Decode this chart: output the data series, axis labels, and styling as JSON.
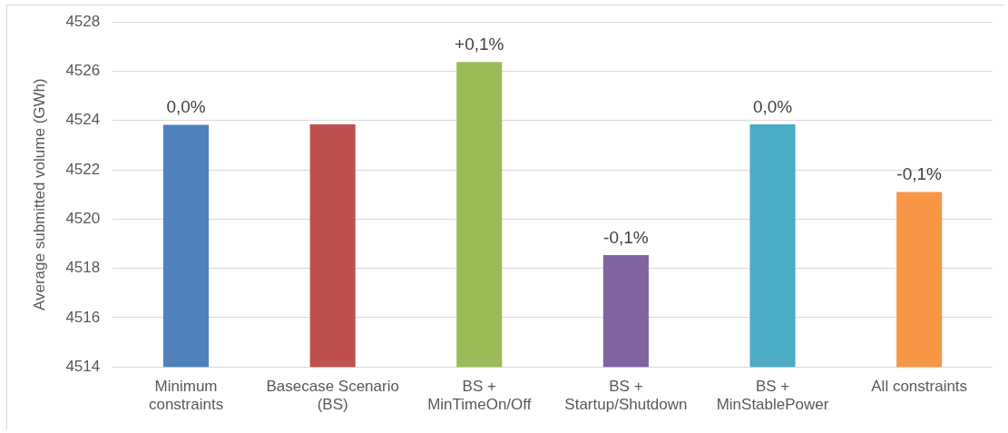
{
  "chart_data": {
    "type": "bar",
    "ylabel": "Average submitted volume (GWh)",
    "categories": [
      "Minimum\nconstraints",
      "Basecase Scenario\n(BS)",
      "BS +\nMinTimeOn/Off",
      "BS +\nStartup/Shutdown",
      "BS +\nMinStablePower",
      "All constraints"
    ],
    "values": [
      4523.83,
      4523.84,
      4526.38,
      4518.54,
      4523.84,
      4521.1
    ],
    "colors": [
      "#4f81bd",
      "#c0504d",
      "#9bbb59",
      "#8064a2",
      "#4bacc6",
      "#f79646"
    ],
    "annotations": [
      {
        "text": "0,0%",
        "x": "Minimum\nconstraints",
        "y": 4523.83
      },
      {
        "text": "+0,1%",
        "x": "BS +\nMinTimeOn/Off",
        "y": 4526.38
      },
      {
        "text": "-0,1%",
        "x": "BS +\nStartup/Shutdown",
        "y": 4518.54
      },
      {
        "text": "0,0%",
        "x": "BS +\nMinStablePower",
        "y": 4523.84
      },
      {
        "text": "-0,1%",
        "x": "All constraints",
        "y": 4521.1
      }
    ],
    "ylim": [
      4514,
      4528
    ],
    "yticks": [
      4514,
      4516,
      4518,
      4520,
      4522,
      4524,
      4526,
      4528
    ],
    "grid": "y"
  }
}
